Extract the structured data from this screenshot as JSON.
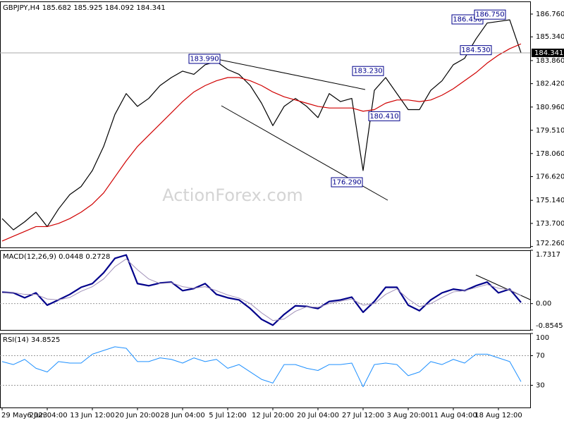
{
  "chart_data": [
    {
      "type": "line",
      "title": "GBPJPY,H4",
      "ohlc": [
        185.682,
        185.925,
        184.092,
        184.341
      ],
      "watermark": "ActionForex.com",
      "ylim": [
        172.2,
        187.55
      ],
      "yticks": [
        {
          "value": 186.76,
          "label": "186.760"
        },
        {
          "value": 185.34,
          "label": "185.340"
        },
        {
          "value": 183.86,
          "label": "183.860"
        },
        {
          "value": 182.42,
          "label": "182.420"
        },
        {
          "value": 180.96,
          "label": "180.960"
        },
        {
          "value": 179.51,
          "label": "179.510"
        },
        {
          "value": 178.06,
          "label": "178.060"
        },
        {
          "value": 176.62,
          "label": "176.620"
        },
        {
          "value": 175.14,
          "label": "175.140"
        },
        {
          "value": 173.7,
          "label": "173.700"
        },
        {
          "value": 172.26,
          "label": "172.260"
        }
      ],
      "current_price": {
        "value": 184.341,
        "label": "184.341"
      },
      "annotations": [
        {
          "value": 183.99,
          "label": "183.990"
        },
        {
          "value": 183.23,
          "label": "183.230"
        },
        {
          "value": 180.41,
          "label": "180.410"
        },
        {
          "value": 176.29,
          "label": "176.290"
        },
        {
          "value": 186.45,
          "label": "186.450"
        },
        {
          "value": 186.75,
          "label": "186.750"
        },
        {
          "value": 184.53,
          "label": "184.530"
        }
      ],
      "levels": [],
      "series": [
        {
          "name": "GBPJPY",
          "color": "#000000",
          "width": 1.2,
          "values": [
            174.0,
            173.3,
            173.8,
            174.4,
            173.5,
            174.6,
            175.5,
            176.0,
            177.0,
            178.5,
            180.5,
            181.8,
            181.0,
            181.5,
            182.3,
            182.8,
            183.2,
            183.0,
            183.6,
            183.8,
            183.3,
            183.0,
            182.3,
            181.2,
            179.8,
            181.0,
            181.5,
            181.0,
            180.3,
            181.8,
            181.3,
            181.5,
            177.0,
            182.0,
            182.8,
            181.8,
            180.8,
            180.8,
            182.0,
            182.6,
            183.6,
            184.0,
            185.2,
            186.2,
            186.3,
            186.4,
            184.341
          ]
        },
        {
          "name": "MA",
          "color": "#d00000",
          "width": 1.2,
          "values": [
            172.6,
            172.9,
            173.2,
            173.5,
            173.5,
            173.7,
            174.0,
            174.4,
            174.9,
            175.6,
            176.6,
            177.6,
            178.5,
            179.2,
            179.9,
            180.6,
            181.3,
            181.9,
            182.3,
            182.6,
            182.8,
            182.8,
            182.6,
            182.3,
            181.9,
            181.6,
            181.4,
            181.2,
            181.0,
            180.9,
            180.9,
            180.9,
            180.7,
            180.8,
            181.2,
            181.4,
            181.4,
            181.3,
            181.4,
            181.7,
            182.1,
            182.6,
            183.1,
            183.7,
            184.2,
            184.6,
            184.9
          ]
        }
      ]
    },
    {
      "type": "line",
      "title": "MACD(12,26,9)",
      "readings": [
        0.0448,
        0.2728
      ],
      "ylim": [
        -0.8545,
        1.7317
      ],
      "yticks": [
        1.7317,
        {
          "value": 0,
          "label": "0.00"
        },
        -0.8545
      ],
      "levels": [
        0
      ],
      "series": [
        {
          "name": "MACD",
          "color": "#00008b",
          "width": 2.2,
          "values": [
            0.37,
            0.35,
            0.19,
            0.35,
            -0.05,
            0.12,
            0.3,
            0.53,
            0.65,
            1.0,
            1.47,
            1.58,
            0.65,
            0.58,
            0.67,
            0.7,
            0.42,
            0.49,
            0.65,
            0.3,
            0.19,
            0.12,
            -0.16,
            -0.51,
            -0.7,
            -0.35,
            -0.07,
            -0.09,
            -0.16,
            0.07,
            0.12,
            0.21,
            -0.28,
            0.07,
            0.53,
            0.53,
            -0.05,
            -0.23,
            0.12,
            0.35,
            0.47,
            0.42,
            0.58,
            0.7,
            0.35,
            0.47,
            0.04
          ]
        },
        {
          "name": "Signal",
          "color": "#a090b8",
          "width": 1,
          "values": [
            0.35,
            0.36,
            0.3,
            0.3,
            0.15,
            0.12,
            0.2,
            0.4,
            0.55,
            0.8,
            1.2,
            1.45,
            1.1,
            0.8,
            0.65,
            0.68,
            0.55,
            0.5,
            0.55,
            0.42,
            0.28,
            0.18,
            0.0,
            -0.3,
            -0.55,
            -0.5,
            -0.25,
            -0.1,
            -0.12,
            0.0,
            0.08,
            0.15,
            -0.05,
            0.0,
            0.3,
            0.48,
            0.15,
            -0.1,
            0.0,
            0.2,
            0.38,
            0.42,
            0.52,
            0.62,
            0.5,
            0.45,
            0.27
          ]
        }
      ]
    },
    {
      "type": "line",
      "title": "RSI(14)",
      "readings": [
        34.8525
      ],
      "ylim": [
        0,
        100
      ],
      "yticks": [
        100,
        70,
        30
      ],
      "levels": [
        70,
        30
      ],
      "categories": [
        "29 May 2023",
        null,
        null,
        null,
        "6 Jun 04:00",
        null,
        null,
        null,
        "13 Jun 12:00",
        null,
        null,
        null,
        "20 Jun 20:00",
        null,
        null,
        null,
        "28 Jun 04:00",
        null,
        null,
        null,
        "5 Jul 12:00",
        null,
        null,
        null,
        "12 Jul 20:00",
        null,
        null,
        null,
        "20 Jul 04:00",
        null,
        null,
        null,
        "27 Jul 12:00",
        null,
        null,
        null,
        "3 Aug 20:00",
        null,
        null,
        null,
        "11 Aug 04:00",
        null,
        null,
        null,
        "18 Aug 12:00",
        null,
        null
      ],
      "series": [
        {
          "name": "RSI",
          "color": "#1e90ff",
          "width": 1,
          "values": [
            62,
            58,
            65,
            53,
            48,
            62,
            60,
            60,
            72,
            77,
            82,
            80,
            62,
            62,
            67,
            65,
            60,
            67,
            62,
            65,
            53,
            58,
            48,
            38,
            33,
            58,
            58,
            53,
            50,
            58,
            58,
            60,
            28,
            58,
            60,
            58,
            43,
            48,
            62,
            58,
            65,
            60,
            72,
            72,
            67,
            62,
            34.8525
          ]
        }
      ]
    }
  ]
}
